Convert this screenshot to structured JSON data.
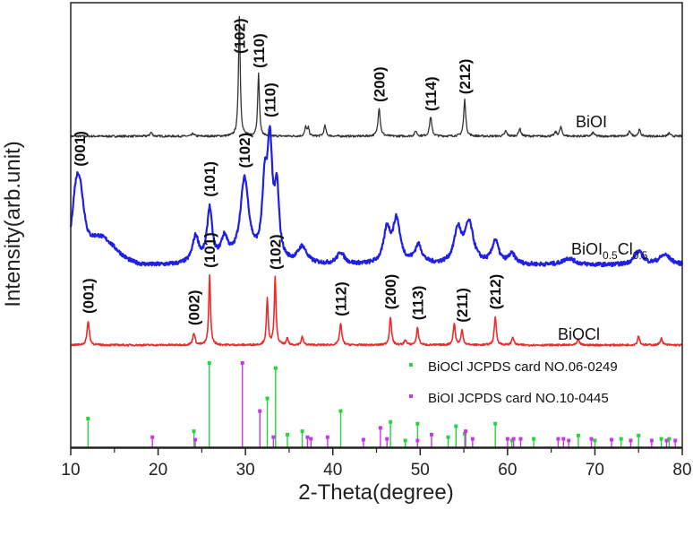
{
  "chart_data": {
    "type": "line",
    "xlabel": "2-Theta(degree)",
    "ylabel": "Intensity(arb.unit)",
    "xlim": [
      10,
      80
    ],
    "x_ticks": [
      10,
      20,
      30,
      40,
      50,
      60,
      70,
      80
    ],
    "x_tick_labels": [
      "10",
      "20",
      "30",
      "40",
      "50",
      "60",
      "70",
      "80"
    ],
    "grid": false,
    "colors": {
      "BiOI": "#333333",
      "BiOI0.5Cl0.5": "#1f1fe6",
      "BiOCl": "#ee2a2a",
      "ref_BiOCl": "#22d63c",
      "ref_BiOI": "#c936e8"
    },
    "series": [
      {
        "name": "BiOI",
        "baseline": 0.0,
        "noise": 0.08,
        "peaks": [
          {
            "x": 19.2,
            "h": 0.15,
            "w": 0.15
          },
          {
            "x": 24.0,
            "h": 0.1,
            "w": 0.15
          },
          {
            "x": 29.3,
            "h": 4.6,
            "w": 0.12
          },
          {
            "x": 31.5,
            "h": 2.4,
            "w": 0.12
          },
          {
            "x": 36.9,
            "h": 0.35,
            "w": 0.12
          },
          {
            "x": 37.2,
            "h": 0.3,
            "w": 0.12
          },
          {
            "x": 39.1,
            "h": 0.4,
            "w": 0.14
          },
          {
            "x": 45.3,
            "h": 1.1,
            "w": 0.15
          },
          {
            "x": 49.5,
            "h": 0.2,
            "w": 0.15
          },
          {
            "x": 51.2,
            "h": 0.75,
            "w": 0.15
          },
          {
            "x": 55.1,
            "h": 1.4,
            "w": 0.14
          },
          {
            "x": 59.8,
            "h": 0.2,
            "w": 0.15
          },
          {
            "x": 61.4,
            "h": 0.3,
            "w": 0.15
          },
          {
            "x": 65.5,
            "h": 0.15,
            "w": 0.15
          },
          {
            "x": 66.1,
            "h": 0.35,
            "w": 0.15
          },
          {
            "x": 69.8,
            "h": 0.15,
            "w": 0.15
          },
          {
            "x": 74.0,
            "h": 0.2,
            "w": 0.15
          },
          {
            "x": 75.1,
            "h": 0.25,
            "w": 0.15
          },
          {
            "x": 78.5,
            "h": 0.12,
            "w": 0.15
          }
        ],
        "peak_labels": [
          {
            "text": "(102)",
            "x": 29.3
          },
          {
            "text": "(110)",
            "x": 31.5
          },
          {
            "text": "(200)",
            "x": 45.3
          },
          {
            "text": "(114)",
            "x": 51.2
          },
          {
            "text": "(212)",
            "x": 55.1
          }
        ]
      },
      {
        "name": "BiOI0.5Cl0.5",
        "baseline": 0.0,
        "noise": 0.12,
        "broad": [
          {
            "x": 10.8,
            "h": 2.3,
            "w": 0.8
          },
          {
            "x": 13.0,
            "h": 0.9,
            "w": 2.8
          }
        ],
        "peaks": [
          {
            "x": 24.3,
            "h": 0.8,
            "w": 0.45
          },
          {
            "x": 25.9,
            "h": 1.6,
            "w": 0.35
          },
          {
            "x": 27.6,
            "h": 0.7,
            "w": 0.5
          },
          {
            "x": 29.9,
            "h": 2.5,
            "w": 0.6
          },
          {
            "x": 32.2,
            "h": 2.0,
            "w": 0.35
          },
          {
            "x": 32.8,
            "h": 3.3,
            "w": 0.35
          },
          {
            "x": 33.6,
            "h": 2.0,
            "w": 0.3
          },
          {
            "x": 36.5,
            "h": 0.5,
            "w": 0.6
          },
          {
            "x": 40.9,
            "h": 0.35,
            "w": 0.5
          },
          {
            "x": 46.2,
            "h": 1.0,
            "w": 0.45
          },
          {
            "x": 47.3,
            "h": 1.3,
            "w": 0.5
          },
          {
            "x": 49.8,
            "h": 0.55,
            "w": 0.5
          },
          {
            "x": 54.3,
            "h": 1.0,
            "w": 0.5
          },
          {
            "x": 55.6,
            "h": 1.2,
            "w": 0.6
          },
          {
            "x": 58.6,
            "h": 0.7,
            "w": 0.45
          },
          {
            "x": 60.5,
            "h": 0.3,
            "w": 0.5
          },
          {
            "x": 67.0,
            "h": 0.2,
            "w": 0.8
          },
          {
            "x": 75.0,
            "h": 0.4,
            "w": 0.6
          },
          {
            "x": 78.0,
            "h": 0.3,
            "w": 0.8
          }
        ],
        "peak_labels": [
          {
            "text": "(001)",
            "x": 11.0
          },
          {
            "text": "(101)",
            "x": 25.9
          },
          {
            "text": "(102)",
            "x": 29.9
          },
          {
            "text": "(110)",
            "x": 32.8
          }
        ]
      },
      {
        "name": "BiOCl",
        "baseline": 0.0,
        "noise": 0.07,
        "peaks": [
          {
            "x": 12.0,
            "h": 0.9,
            "w": 0.15
          },
          {
            "x": 24.1,
            "h": 0.45,
            "w": 0.15
          },
          {
            "x": 25.9,
            "h": 2.6,
            "w": 0.12
          },
          {
            "x": 32.5,
            "h": 1.7,
            "w": 0.12
          },
          {
            "x": 33.4,
            "h": 2.5,
            "w": 0.12
          },
          {
            "x": 34.8,
            "h": 0.25,
            "w": 0.12
          },
          {
            "x": 36.5,
            "h": 0.3,
            "w": 0.14
          },
          {
            "x": 40.9,
            "h": 0.8,
            "w": 0.15
          },
          {
            "x": 46.6,
            "h": 1.05,
            "w": 0.14
          },
          {
            "x": 48.3,
            "h": 0.2,
            "w": 0.14
          },
          {
            "x": 49.7,
            "h": 0.65,
            "w": 0.14
          },
          {
            "x": 53.9,
            "h": 0.8,
            "w": 0.14
          },
          {
            "x": 54.8,
            "h": 0.55,
            "w": 0.14
          },
          {
            "x": 58.6,
            "h": 1.05,
            "w": 0.14
          },
          {
            "x": 60.6,
            "h": 0.3,
            "w": 0.14
          },
          {
            "x": 68.1,
            "h": 0.2,
            "w": 0.15
          },
          {
            "x": 75.0,
            "h": 0.35,
            "w": 0.14
          },
          {
            "x": 77.6,
            "h": 0.25,
            "w": 0.15
          }
        ],
        "peak_labels": [
          {
            "text": "(001)",
            "x": 12.0
          },
          {
            "text": "(002)",
            "x": 24.1
          },
          {
            "text": "(101)",
            "x": 25.9
          },
          {
            "text": "(102)",
            "x": 33.4
          },
          {
            "text": "(112)",
            "x": 40.9
          },
          {
            "text": "(200)",
            "x": 46.6
          },
          {
            "text": "(113)",
            "x": 49.7
          },
          {
            "text": "(211)",
            "x": 54.8
          },
          {
            "text": "(212)",
            "x": 58.6
          }
        ]
      }
    ],
    "series_labels": {
      "BiOI": {
        "base": "BiOI"
      },
      "BiOI0.5Cl0.5": {
        "base1": "BiOI",
        "sub1": "0.5",
        "base2": "Cl",
        "sub2": "0.5"
      },
      "BiOCl": {
        "base": "BiOCl"
      }
    },
    "reference_sticks": {
      "BiOCl": {
        "legend": "BiOCl JCPDS card NO.06-0249",
        "sticks": [
          {
            "x": 11.98,
            "h": 0.34
          },
          {
            "x": 24.1,
            "h": 0.19
          },
          {
            "x": 25.86,
            "h": 1.0
          },
          {
            "x": 32.5,
            "h": 0.58
          },
          {
            "x": 33.45,
            "h": 0.94
          },
          {
            "x": 34.8,
            "h": 0.15
          },
          {
            "x": 36.5,
            "h": 0.19
          },
          {
            "x": 40.9,
            "h": 0.43
          },
          {
            "x": 46.6,
            "h": 0.3
          },
          {
            "x": 48.3,
            "h": 0.08
          },
          {
            "x": 49.7,
            "h": 0.28
          },
          {
            "x": 53.2,
            "h": 0.12
          },
          {
            "x": 54.1,
            "h": 0.25
          },
          {
            "x": 55.1,
            "h": 0.16
          },
          {
            "x": 58.6,
            "h": 0.28
          },
          {
            "x": 60.5,
            "h": 0.08
          },
          {
            "x": 63.0,
            "h": 0.1
          },
          {
            "x": 68.1,
            "h": 0.14
          },
          {
            "x": 70.0,
            "h": 0.08
          },
          {
            "x": 73.0,
            "h": 0.1
          },
          {
            "x": 75.0,
            "h": 0.14
          },
          {
            "x": 77.6,
            "h": 0.1
          },
          {
            "x": 78.5,
            "h": 0.1
          }
        ]
      },
      "BiOI": {
        "legend": "BiOI JCPDS card NO.10-0445",
        "sticks": [
          {
            "x": 19.35,
            "h": 0.12
          },
          {
            "x": 24.25,
            "h": 0.09
          },
          {
            "x": 29.65,
            "h": 1.0
          },
          {
            "x": 31.65,
            "h": 0.43
          },
          {
            "x": 33.2,
            "h": 0.12
          },
          {
            "x": 37.1,
            "h": 0.12
          },
          {
            "x": 37.5,
            "h": 0.1
          },
          {
            "x": 39.4,
            "h": 0.12
          },
          {
            "x": 43.5,
            "h": 0.09
          },
          {
            "x": 45.45,
            "h": 0.23
          },
          {
            "x": 46.2,
            "h": 0.1
          },
          {
            "x": 49.7,
            "h": 0.08
          },
          {
            "x": 51.3,
            "h": 0.15
          },
          {
            "x": 55.2,
            "h": 0.19
          },
          {
            "x": 56.0,
            "h": 0.1
          },
          {
            "x": 60.0,
            "h": 0.1
          },
          {
            "x": 60.7,
            "h": 0.1
          },
          {
            "x": 61.5,
            "h": 0.1
          },
          {
            "x": 65.8,
            "h": 0.1
          },
          {
            "x": 66.4,
            "h": 0.1
          },
          {
            "x": 67.0,
            "h": 0.08
          },
          {
            "x": 69.6,
            "h": 0.1
          },
          {
            "x": 71.9,
            "h": 0.09
          },
          {
            "x": 74.1,
            "h": 0.08
          },
          {
            "x": 76.5,
            "h": 0.08
          },
          {
            "x": 78.2,
            "h": 0.08
          },
          {
            "x": 79.2,
            "h": 0.08
          }
        ]
      }
    }
  }
}
